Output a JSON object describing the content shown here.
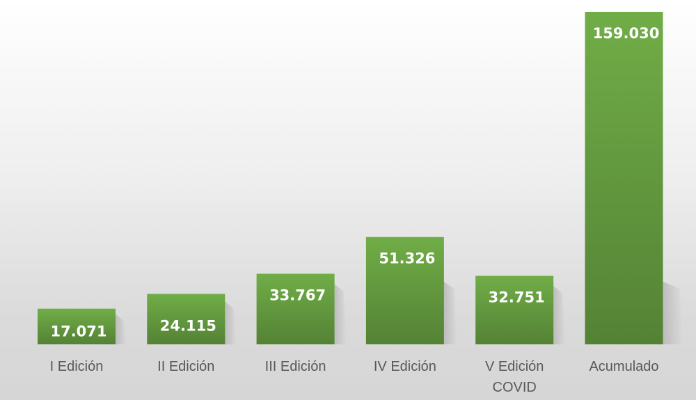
{
  "chart_data": {
    "type": "bar",
    "categories": [
      [
        "I Edición"
      ],
      [
        "II Edición"
      ],
      [
        "III Edición"
      ],
      [
        "IV Edición"
      ],
      [
        "V Edición",
        "COVID"
      ],
      [
        "Acumulado"
      ]
    ],
    "values": [
      17071,
      24115,
      33767,
      51326,
      32751,
      159030
    ],
    "value_labels": [
      "17.071",
      "24.115",
      "33.767",
      "51.326",
      "32.751",
      "159.030"
    ],
    "title": "",
    "xlabel": "",
    "ylabel": "",
    "ylim": [
      0,
      159030
    ],
    "grid": false,
    "legend": "none",
    "colors": {
      "bar_top": "#70ad47",
      "bar_bottom": "#548235",
      "shadow": "#b7b7b7",
      "tick_text": "#595959",
      "value_text": "#ffffff"
    }
  }
}
